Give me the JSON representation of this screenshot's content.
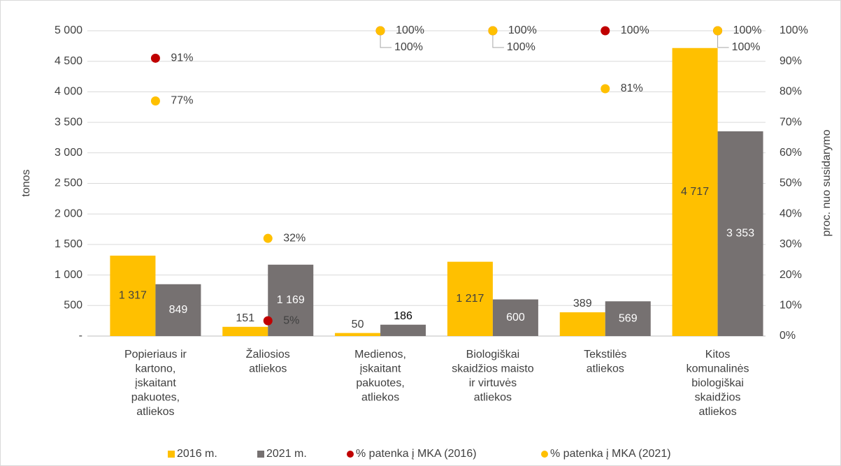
{
  "chart_data": {
    "type": "bar",
    "categories": [
      [
        "Popieriaus ir",
        "kartono,",
        "įskaitant",
        "pakuotes,",
        "atliekos"
      ],
      [
        "Žaliosios",
        "atliekos"
      ],
      [
        "Medienos,",
        "įskaitant",
        "pakuotes,",
        "atliekos"
      ],
      [
        "Biologiškai",
        "skaidžios maisto",
        "ir virtuvės",
        "atliekos"
      ],
      [
        "Tekstilės",
        "atliekos"
      ],
      [
        "Kitos",
        "komunalinės",
        "biologiškai",
        "skaidžios",
        "atliekos"
      ]
    ],
    "series": [
      {
        "name": "2016 m.",
        "color": "#FFC000",
        "values": [
          1317,
          151,
          50,
          1217,
          389,
          4717
        ],
        "value_labels": [
          "1 317",
          "151",
          "50",
          "1 217",
          "389",
          "4 717"
        ]
      },
      {
        "name": "2021 m.",
        "color": "#767171",
        "values": [
          849,
          1169,
          186,
          600,
          569,
          3353
        ],
        "value_labels": [
          "849",
          "1 169",
          "186",
          "600",
          "569",
          "3 353"
        ]
      },
      {
        "name": "% patenka į MKA (2016)",
        "type": "scatter",
        "axis": "y2",
        "color": "#C00000",
        "values": [
          91,
          5,
          100,
          100,
          100,
          100
        ],
        "value_labels": [
          "91%",
          "5%",
          "100%",
          "100%",
          "100%",
          "100%"
        ]
      },
      {
        "name": "% patenka į MKA (2021)",
        "type": "scatter",
        "axis": "y2",
        "color": "#FFC000",
        "values": [
          77,
          32,
          100,
          100,
          81,
          100
        ],
        "value_labels": [
          "77%",
          "32%",
          "100%",
          "100%",
          "81%",
          "100%"
        ]
      }
    ],
    "ylabel": "tonos",
    "y2label": "proc. nuo susidarymo",
    "ylim": [
      0,
      5000
    ],
    "yticks": [
      {
        "value": 0,
        "label": "-"
      },
      500,
      {
        "value": 1000,
        "label": "1 000"
      },
      {
        "value": 1500,
        "label": "1 500"
      },
      {
        "value": 2000,
        "label": "2 000"
      },
      {
        "value": 2500,
        "label": "2 500"
      },
      {
        "value": 3000,
        "label": "3 000"
      },
      {
        "value": 3500,
        "label": "3 500"
      },
      {
        "value": 4000,
        "label": "4 000"
      },
      {
        "value": 4500,
        "label": "4 500"
      },
      {
        "value": 5000,
        "label": "5 000"
      }
    ],
    "y2lim": [
      0,
      100
    ],
    "y2ticks": [
      {
        "value": 0,
        "label": "0%"
      },
      {
        "value": 10,
        "label": "10%"
      },
      {
        "value": 20,
        "label": "20%"
      },
      {
        "value": 30,
        "label": "30%"
      },
      {
        "value": 40,
        "label": "40%"
      },
      {
        "value": 50,
        "label": "50%"
      },
      {
        "value": 60,
        "label": "60%"
      },
      {
        "value": 70,
        "label": "70%"
      },
      {
        "value": 80,
        "label": "80%"
      },
      {
        "value": 90,
        "label": "90%"
      },
      {
        "value": 100,
        "label": "100%"
      }
    ],
    "grid": true,
    "legend": "bottom"
  }
}
